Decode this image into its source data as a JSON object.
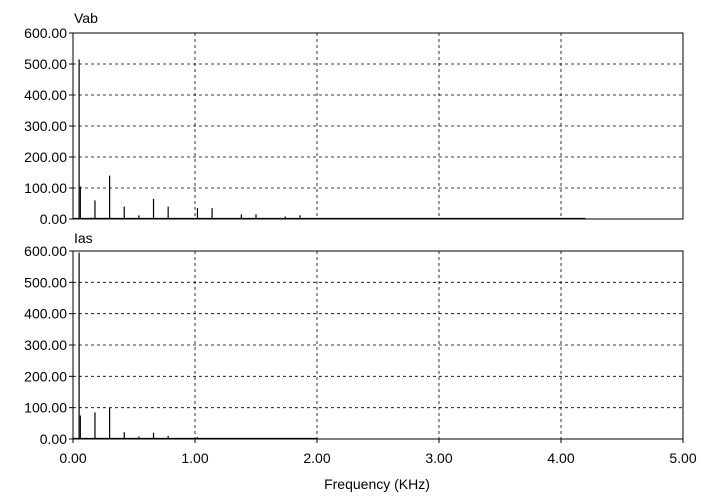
{
  "chart_data": [
    {
      "type": "line",
      "title": "Vab",
      "ylim": [
        0,
        600
      ],
      "xlim": [
        0,
        5
      ],
      "yticks": [
        "0.00",
        "100.00",
        "200.00",
        "300.00",
        "400.00",
        "500.00",
        "600.00"
      ],
      "grid": true,
      "series": [
        {
          "x": [
            0.05,
            0.06,
            0.18,
            0.3,
            0.42,
            0.54,
            0.66,
            0.78,
            1.02,
            1.14,
            1.38,
            1.5,
            1.74,
            1.86
          ],
          "values": [
            515,
            105,
            60,
            140,
            40,
            12,
            65,
            40,
            35,
            35,
            15,
            15,
            8,
            12
          ]
        }
      ]
    },
    {
      "type": "line",
      "title": "Ias",
      "ylim": [
        0,
        600
      ],
      "xlim": [
        0,
        5
      ],
      "yticks": [
        "0.00",
        "100.00",
        "200.00",
        "300.00",
        "400.00",
        "500.00",
        "600.00"
      ],
      "xticks": [
        "0.00",
        "1.00",
        "2.00",
        "3.00",
        "4.00",
        "5.00"
      ],
      "xlabel": "Frequency (KHz)",
      "grid": true,
      "series": [
        {
          "x": [
            0.05,
            0.06,
            0.18,
            0.3,
            0.42,
            0.54,
            0.66,
            0.78,
            1.02
          ],
          "values": [
            595,
            75,
            85,
            100,
            22,
            8,
            20,
            10,
            6
          ]
        }
      ]
    }
  ]
}
